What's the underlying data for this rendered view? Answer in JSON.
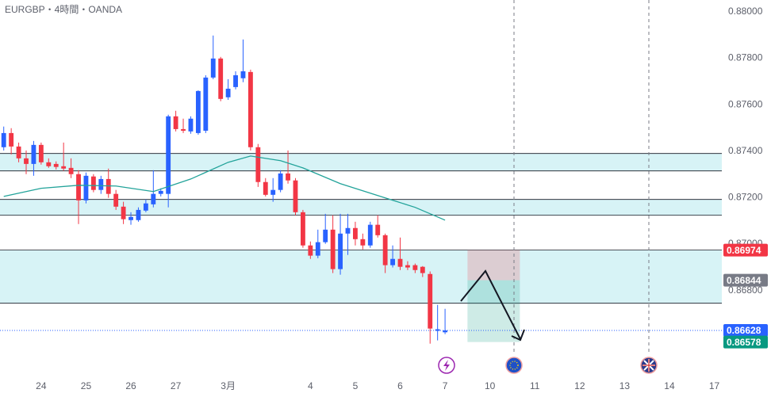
{
  "chart_data": {
    "type": "candlestick",
    "title": "EURGBP・4時間・OANDA",
    "up_color": "#2962ff",
    "down_color": "#f23645",
    "xlim": [
      -0.5,
      96
    ],
    "xticks": [
      {
        "value": 5,
        "label": "24"
      },
      {
        "value": 11,
        "label": "25"
      },
      {
        "value": 17,
        "label": "26"
      },
      {
        "value": 23,
        "label": "27"
      },
      {
        "value": 30,
        "label": "3月"
      },
      {
        "value": 41,
        "label": "4"
      },
      {
        "value": 47,
        "label": "5"
      },
      {
        "value": 53,
        "label": "6"
      },
      {
        "value": 59,
        "label": "7"
      },
      {
        "value": 65,
        "label": "10"
      },
      {
        "value": 71,
        "label": "11"
      },
      {
        "value": 77,
        "label": "12"
      },
      {
        "value": 83,
        "label": "13"
      },
      {
        "value": 89,
        "label": "14"
      },
      {
        "value": 95,
        "label": "17"
      }
    ],
    "ylim": [
      0.8643,
      0.88051
    ],
    "yticks": [
      {
        "value": 0.868,
        "label": "0.86800"
      },
      {
        "value": 0.87,
        "label": "0.87000"
      },
      {
        "value": 0.872,
        "label": "0.87200"
      },
      {
        "value": 0.874,
        "label": "0.87400"
      },
      {
        "value": 0.876,
        "label": "0.87600"
      },
      {
        "value": 0.878,
        "label": "0.87800"
      },
      {
        "value": 0.88,
        "label": "0.88000"
      }
    ],
    "open": [
      0.87417,
      0.87478,
      0.8742,
      0.87369,
      0.87345,
      0.87427,
      0.87352,
      0.87345,
      0.87335,
      0.87328,
      0.87301,
      0.87188,
      0.87291,
      0.87233,
      0.8728,
      0.87216,
      0.87161,
      0.87103,
      0.87103,
      0.87144,
      0.87171,
      0.87216,
      0.87216,
      0.8755,
      0.87495,
      0.87485,
      0.87478,
      0.87488,
      0.87717,
      0.87799,
      0.87632,
      0.87676,
      0.87714,
      0.87741,
      0.87417,
      0.87267,
      0.87212,
      0.87233,
      0.87304,
      0.87274,
      0.87137,
      0.86994,
      0.8695,
      0.87008,
      0.87062,
      0.86892,
      0.87045,
      0.87069,
      0.87021,
      0.86994,
      0.87083,
      0.87038,
      0.86909,
      0.86936,
      0.86909,
      0.86909,
      0.86902,
      0.86871,
      0.86626,
      0.8662
    ],
    "high": [
      0.87506,
      0.87499,
      0.87437,
      0.87403,
      0.87444,
      0.87437,
      0.87369,
      0.87356,
      0.87437,
      0.87369,
      0.87318,
      0.87308,
      0.87301,
      0.87294,
      0.87325,
      0.87233,
      0.87182,
      0.87137,
      0.87158,
      0.87192,
      0.87318,
      0.8724,
      0.87557,
      0.87574,
      0.8754,
      0.8755,
      0.87662,
      0.87727,
      0.87898,
      0.87806,
      0.8771,
      0.87744,
      0.87881,
      0.87751,
      0.87431,
      0.87284,
      0.87284,
      0.87318,
      0.87403,
      0.87284,
      0.87147,
      0.87011,
      0.87062,
      0.8713,
      0.87124,
      0.8713,
      0.8713,
      0.87096,
      0.87045,
      0.87096,
      0.87124,
      0.87045,
      0.86994,
      0.87028,
      0.86926,
      0.86916,
      0.86905,
      0.86882,
      0.86738,
      0.86721
    ],
    "low": [
      0.87403,
      0.87386,
      0.87352,
      0.87301,
      0.87294,
      0.87342,
      0.87328,
      0.87321,
      0.87315,
      0.87284,
      0.87086,
      0.87175,
      0.87223,
      0.87216,
      0.87199,
      0.87147,
      0.87086,
      0.87083,
      0.87096,
      0.87137,
      0.87158,
      0.87205,
      0.87158,
      0.87485,
      0.87478,
      0.87475,
      0.87471,
      0.87478,
      0.8771,
      0.87615,
      0.87621,
      0.87666,
      0.87697,
      0.87403,
      0.87246,
      0.87205,
      0.87182,
      0.87223,
      0.8726,
      0.87124,
      0.86984,
      0.86936,
      0.86939,
      0.87001,
      0.86875,
      0.86868,
      0.86953,
      0.86994,
      0.86977,
      0.86984,
      0.87028,
      0.86875,
      0.86899,
      0.86888,
      0.86888,
      0.86875,
      0.86858,
      0.86571,
      0.86585,
      0.86612
    ],
    "close": [
      0.87478,
      0.8742,
      0.87369,
      0.87345,
      0.87427,
      0.87352,
      0.87335,
      0.87332,
      0.87325,
      0.87301,
      0.87188,
      0.87294,
      0.87233,
      0.8728,
      0.87216,
      0.87161,
      0.87107,
      0.87117,
      0.87147,
      0.87175,
      0.87216,
      0.87229,
      0.8755,
      0.87495,
      0.87488,
      0.8754,
      0.87659,
      0.87717,
      0.87799,
      0.87625,
      0.87669,
      0.87727,
      0.87744,
      0.87417,
      0.87267,
      0.87212,
      0.87233,
      0.87304,
      0.87274,
      0.87137,
      0.86994,
      0.8695,
      0.87008,
      0.87062,
      0.86892,
      0.87045,
      0.87069,
      0.87021,
      0.86994,
      0.87083,
      0.87038,
      0.86909,
      0.86936,
      0.86902,
      0.86899,
      0.86888,
      0.86875,
      0.86636,
      0.86633,
      0.86628
    ],
    "moving_average": {
      "color": "#22a39a",
      "x": [
        0,
        5,
        10,
        15,
        20,
        25,
        30,
        33,
        37,
        40,
        45,
        50,
        55,
        59
      ],
      "values": [
        0.87205,
        0.8724,
        0.87253,
        0.8725,
        0.87226,
        0.8728,
        0.87352,
        0.87379,
        0.87359,
        0.87328,
        0.8726,
        0.87209,
        0.87158,
        0.87103
      ]
    },
    "zones": [
      {
        "top": 0.8739,
        "bottom": 0.87315
      },
      {
        "top": 0.87192,
        "bottom": 0.87124
      },
      {
        "top": 0.86974,
        "bottom": 0.86745
      }
    ],
    "position": {
      "x": [
        62,
        69
      ],
      "stop": 0.86974,
      "entry": 0.86844,
      "target": 0.86578
    },
    "price_labels": [
      {
        "value": 0.86974,
        "color": "#f23645"
      },
      {
        "value": 0.86844,
        "color": "#787b86"
      },
      {
        "value": 0.86628,
        "color": "#2962ff"
      },
      {
        "value": 0.86578,
        "color": "#089981"
      }
    ]
  }
}
